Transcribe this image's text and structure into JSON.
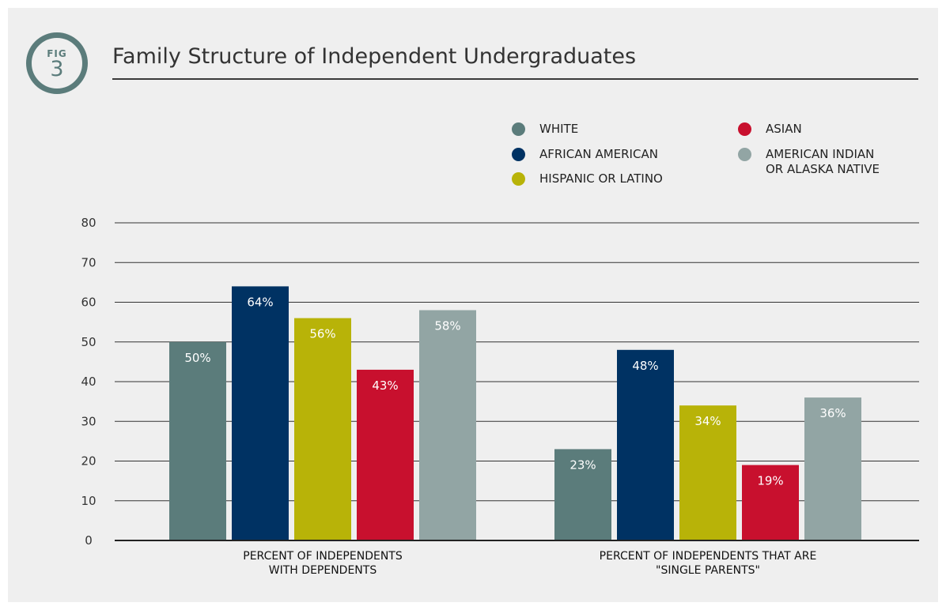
{
  "figure": {
    "badge_label": "FIG",
    "badge_number": "3"
  },
  "colors": {
    "white": "#5b7c7b",
    "african_american": "#003263",
    "hispanic_or_latino": "#b8b308",
    "asian": "#c8102e",
    "american_indian": "#92a5a4"
  },
  "chart_data": {
    "type": "bar",
    "title": "Family Structure of Independent Undergraduates",
    "categories": [
      [
        "PERCENT OF INDEPENDENTS",
        "WITH DEPENDENTS"
      ],
      [
        "PERCENT OF INDEPENDENTS THAT ARE",
        "\"SINGLE PARENTS\""
      ]
    ],
    "series": [
      {
        "name": "WHITE",
        "values": [
          50,
          23
        ],
        "labels": [
          "50%",
          "23%"
        ],
        "color": "#5b7c7b"
      },
      {
        "name": "AFRICAN AMERICAN",
        "values": [
          64,
          48
        ],
        "labels": [
          "64%",
          "48%"
        ],
        "color": "#003263"
      },
      {
        "name": "HISPANIC OR LATINO",
        "values": [
          56,
          34
        ],
        "labels": [
          "56%",
          "34%"
        ],
        "color": "#b8b308"
      },
      {
        "name": "ASIAN",
        "values": [
          43,
          19
        ],
        "labels": [
          "43%",
          "19%"
        ],
        "color": "#c8102e"
      },
      {
        "name": "AMERICAN INDIAN\nOR ALASKA NATIVE",
        "values": [
          58,
          36
        ],
        "labels": [
          "58%",
          "36%"
        ],
        "color": "#92a5a4"
      }
    ],
    "ylim": [
      0,
      80
    ],
    "yticks": [
      0,
      10,
      20,
      30,
      40,
      50,
      60,
      70,
      80
    ],
    "grid": true,
    "legend": "top-right"
  }
}
